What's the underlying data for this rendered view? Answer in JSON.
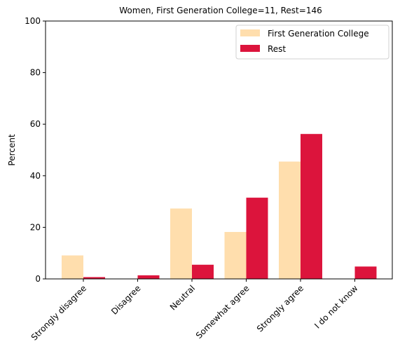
{
  "chart_data": {
    "type": "bar",
    "title": "Women, First Generation College=11, Rest=146",
    "xlabel": "",
    "ylabel": "Percent",
    "ylim": [
      0,
      100
    ],
    "yticks": [
      "0",
      "20",
      "40",
      "60",
      "80",
      "100"
    ],
    "categories": [
      "Strongly disagree",
      "Disagree",
      "Neutral",
      "Somewhat agree",
      "Strongly agree",
      "I do not know"
    ],
    "series": [
      {
        "name": "First Generation College",
        "color": "#FFDEAD",
        "values": [
          9.1,
          0,
          27.3,
          18.2,
          45.5,
          0
        ]
      },
      {
        "name": "Rest",
        "color": "#DC143C",
        "values": [
          0.7,
          1.4,
          5.5,
          31.5,
          56.2,
          4.8
        ]
      }
    ],
    "legend": "top-right",
    "grid": false
  }
}
